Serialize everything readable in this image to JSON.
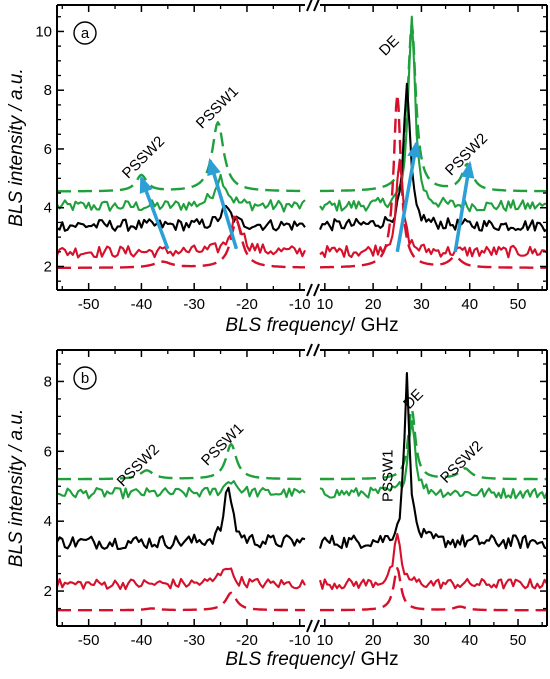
{
  "colors": {
    "green": "#1fa03c",
    "black": "#000000",
    "red": "#d6102b",
    "arrow": "#2b9fd6"
  },
  "chart_data": [
    {
      "type": "line",
      "panel_label": "a",
      "xlabel_italic": "BLS frequency",
      "xlabel_unit": "/ GHz",
      "ylabel": "BLS intensity / a.u.",
      "x_ticks": [
        "-50",
        "-40",
        "-30",
        "-20",
        "-10",
        "10",
        "20",
        "30",
        "40",
        "50"
      ],
      "y_ticks": [
        "2",
        "4",
        "6",
        "8",
        "10"
      ],
      "xlim_left": [
        -56,
        -9
      ],
      "xlim_right": [
        9,
        56
      ],
      "ylim": [
        1.2,
        10.9
      ],
      "broken_x_axis": true,
      "annotations": [
        {
          "text": "PSSW2",
          "x": -39,
          "y": 5.6,
          "rotate": -45
        },
        {
          "text": "PSSW1",
          "x": -25,
          "y": 7.3,
          "rotate": -45
        },
        {
          "text": "DE",
          "x": 24,
          "y": 9.4,
          "rotate": -45
        },
        {
          "text": "PSSW2",
          "x": 40,
          "y": 5.7,
          "rotate": -45
        }
      ],
      "arrows": [
        {
          "from": [
            -35,
            2.6
          ],
          "to": [
            -40,
            5.0
          ]
        },
        {
          "from": [
            -22,
            2.6
          ],
          "to": [
            -27,
            5.6
          ]
        },
        {
          "from": [
            25,
            2.5
          ],
          "to": [
            29,
            6.2
          ]
        },
        {
          "from": [
            37,
            2.5
          ],
          "to": [
            40,
            5.5
          ]
        }
      ],
      "series": [
        {
          "color": "green",
          "style": "dashed",
          "baseline": 4.55,
          "peaks": [
            [
              -40,
              0.55,
              1.2
            ],
            [
              -25.5,
              2.35,
              1.3
            ],
            [
              28,
              5.7,
              1.0
            ],
            [
              39.5,
              0.9,
              1.3
            ]
          ]
        },
        {
          "color": "green",
          "style": "noisy",
          "baseline": 4.05,
          "noise": 0.2,
          "peaks": [
            [
              -25,
              1.0,
              1.4
            ],
            [
              28,
              6.6,
              0.8
            ]
          ]
        },
        {
          "color": "black",
          "style": "noisy",
          "baseline": 3.4,
          "noise": 0.2,
          "peaks": [
            [
              -24,
              0.55,
              1.3
            ],
            [
              27,
              4.7,
              0.8
            ]
          ]
        },
        {
          "color": "red",
          "style": "noisy",
          "baseline": 2.5,
          "noise": 0.2,
          "peaks": [
            [
              -22,
              1.25,
              1.2
            ],
            [
              25.5,
              3.1,
              0.8
            ]
          ]
        },
        {
          "color": "red",
          "style": "dashed",
          "baseline": 1.95,
          "peaks": [
            [
              -36,
              0.2,
              2.0
            ],
            [
              -22,
              1.6,
              1.3
            ],
            [
              25,
              5.9,
              0.9
            ],
            [
              37,
              0.35,
              1.5
            ]
          ]
        }
      ]
    },
    {
      "type": "line",
      "panel_label": "b",
      "xlabel_italic": "BLS frequency",
      "xlabel_unit": "/ GHz",
      "ylabel": "BLS intensity / a.u.",
      "x_ticks": [
        "-50",
        "-40",
        "-30",
        "-20",
        "-10",
        "10",
        "20",
        "30",
        "40",
        "50"
      ],
      "y_ticks": [
        "2",
        "4",
        "6",
        "8"
      ],
      "xlim_left": [
        -56,
        -9
      ],
      "xlim_right": [
        9,
        56
      ],
      "ylim": [
        1.0,
        8.9
      ],
      "broken_x_axis": true,
      "annotations": [
        {
          "text": "PSSW2",
          "x": -40,
          "y": 5.5,
          "rotate": -45
        },
        {
          "text": "PSSW1",
          "x": -24,
          "y": 6.1,
          "rotate": -45
        },
        {
          "text": "PSSW1",
          "x": 24,
          "y": 5.3,
          "rotate": -90
        },
        {
          "text": "DE",
          "x": 29,
          "y": 7.4,
          "rotate": -45
        },
        {
          "text": "PSSW2",
          "x": 39,
          "y": 5.6,
          "rotate": -45
        }
      ],
      "series": [
        {
          "color": "green",
          "style": "dashed",
          "baseline": 5.2,
          "peaks": [
            [
              -39,
              0.25,
              1.5
            ],
            [
              -23,
              1.0,
              1.2
            ],
            [
              28,
              2.0,
              0.9
            ],
            [
              39,
              0.3,
              1.5
            ]
          ]
        },
        {
          "color": "green",
          "style": "noisy",
          "baseline": 4.8,
          "noise": 0.15,
          "peaks": [
            [
              -23,
              0.4,
              1.2
            ],
            [
              28,
              2.2,
              0.8
            ]
          ]
        },
        {
          "color": "black",
          "style": "noisy",
          "baseline": 3.4,
          "noise": 0.2,
          "peaks": [
            [
              -23.5,
              1.6,
              0.9
            ],
            [
              27,
              4.7,
              0.7
            ]
          ]
        },
        {
          "color": "red",
          "style": "noisy",
          "baseline": 2.2,
          "noise": 0.15,
          "peaks": [
            [
              -24,
              0.55,
              1.2
            ],
            [
              25,
              1.3,
              0.9
            ]
          ]
        },
        {
          "color": "red",
          "style": "dashed",
          "baseline": 1.45,
          "peaks": [
            [
              -38,
              0.05,
              1.5
            ],
            [
              -23,
              0.5,
              1.2
            ],
            [
              25,
              1.2,
              0.9
            ],
            [
              38,
              0.1,
              1.5
            ]
          ]
        }
      ]
    }
  ]
}
